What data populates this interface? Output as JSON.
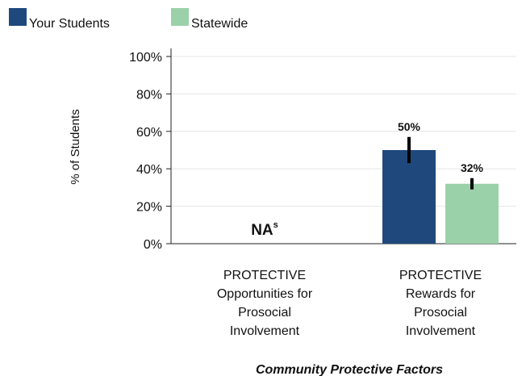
{
  "chart_data": {
    "type": "bar",
    "title": "",
    "xlabel": "Community Protective Factors",
    "ylabel": "% of Students",
    "ylim": [
      0,
      100
    ],
    "yticks": [
      0,
      20,
      40,
      60,
      80,
      100
    ],
    "ytick_suffix": "%",
    "grid": true,
    "legend_position": "top-left",
    "categories": [
      [
        "PROTECTIVE",
        "Opportunities for",
        "Prosocial",
        "Involvement"
      ],
      [
        "PROTECTIVE",
        "Rewards for",
        "Prosocial",
        "Involvement"
      ]
    ],
    "series": [
      {
        "name": "Your Students",
        "color": "#1f497d",
        "values": [
          null,
          50
        ],
        "labels": [
          "",
          "50%"
        ],
        "error_low": [
          null,
          43
        ],
        "error_high": [
          null,
          57
        ]
      },
      {
        "name": "Statewide",
        "color": "#9bd1a9",
        "values": [
          null,
          32
        ],
        "labels": [
          "",
          "32%"
        ],
        "error_low": [
          null,
          29
        ],
        "error_high": [
          null,
          35
        ]
      }
    ],
    "annotations": [
      {
        "category": 0,
        "text": "NA",
        "superscript": "s"
      }
    ]
  }
}
